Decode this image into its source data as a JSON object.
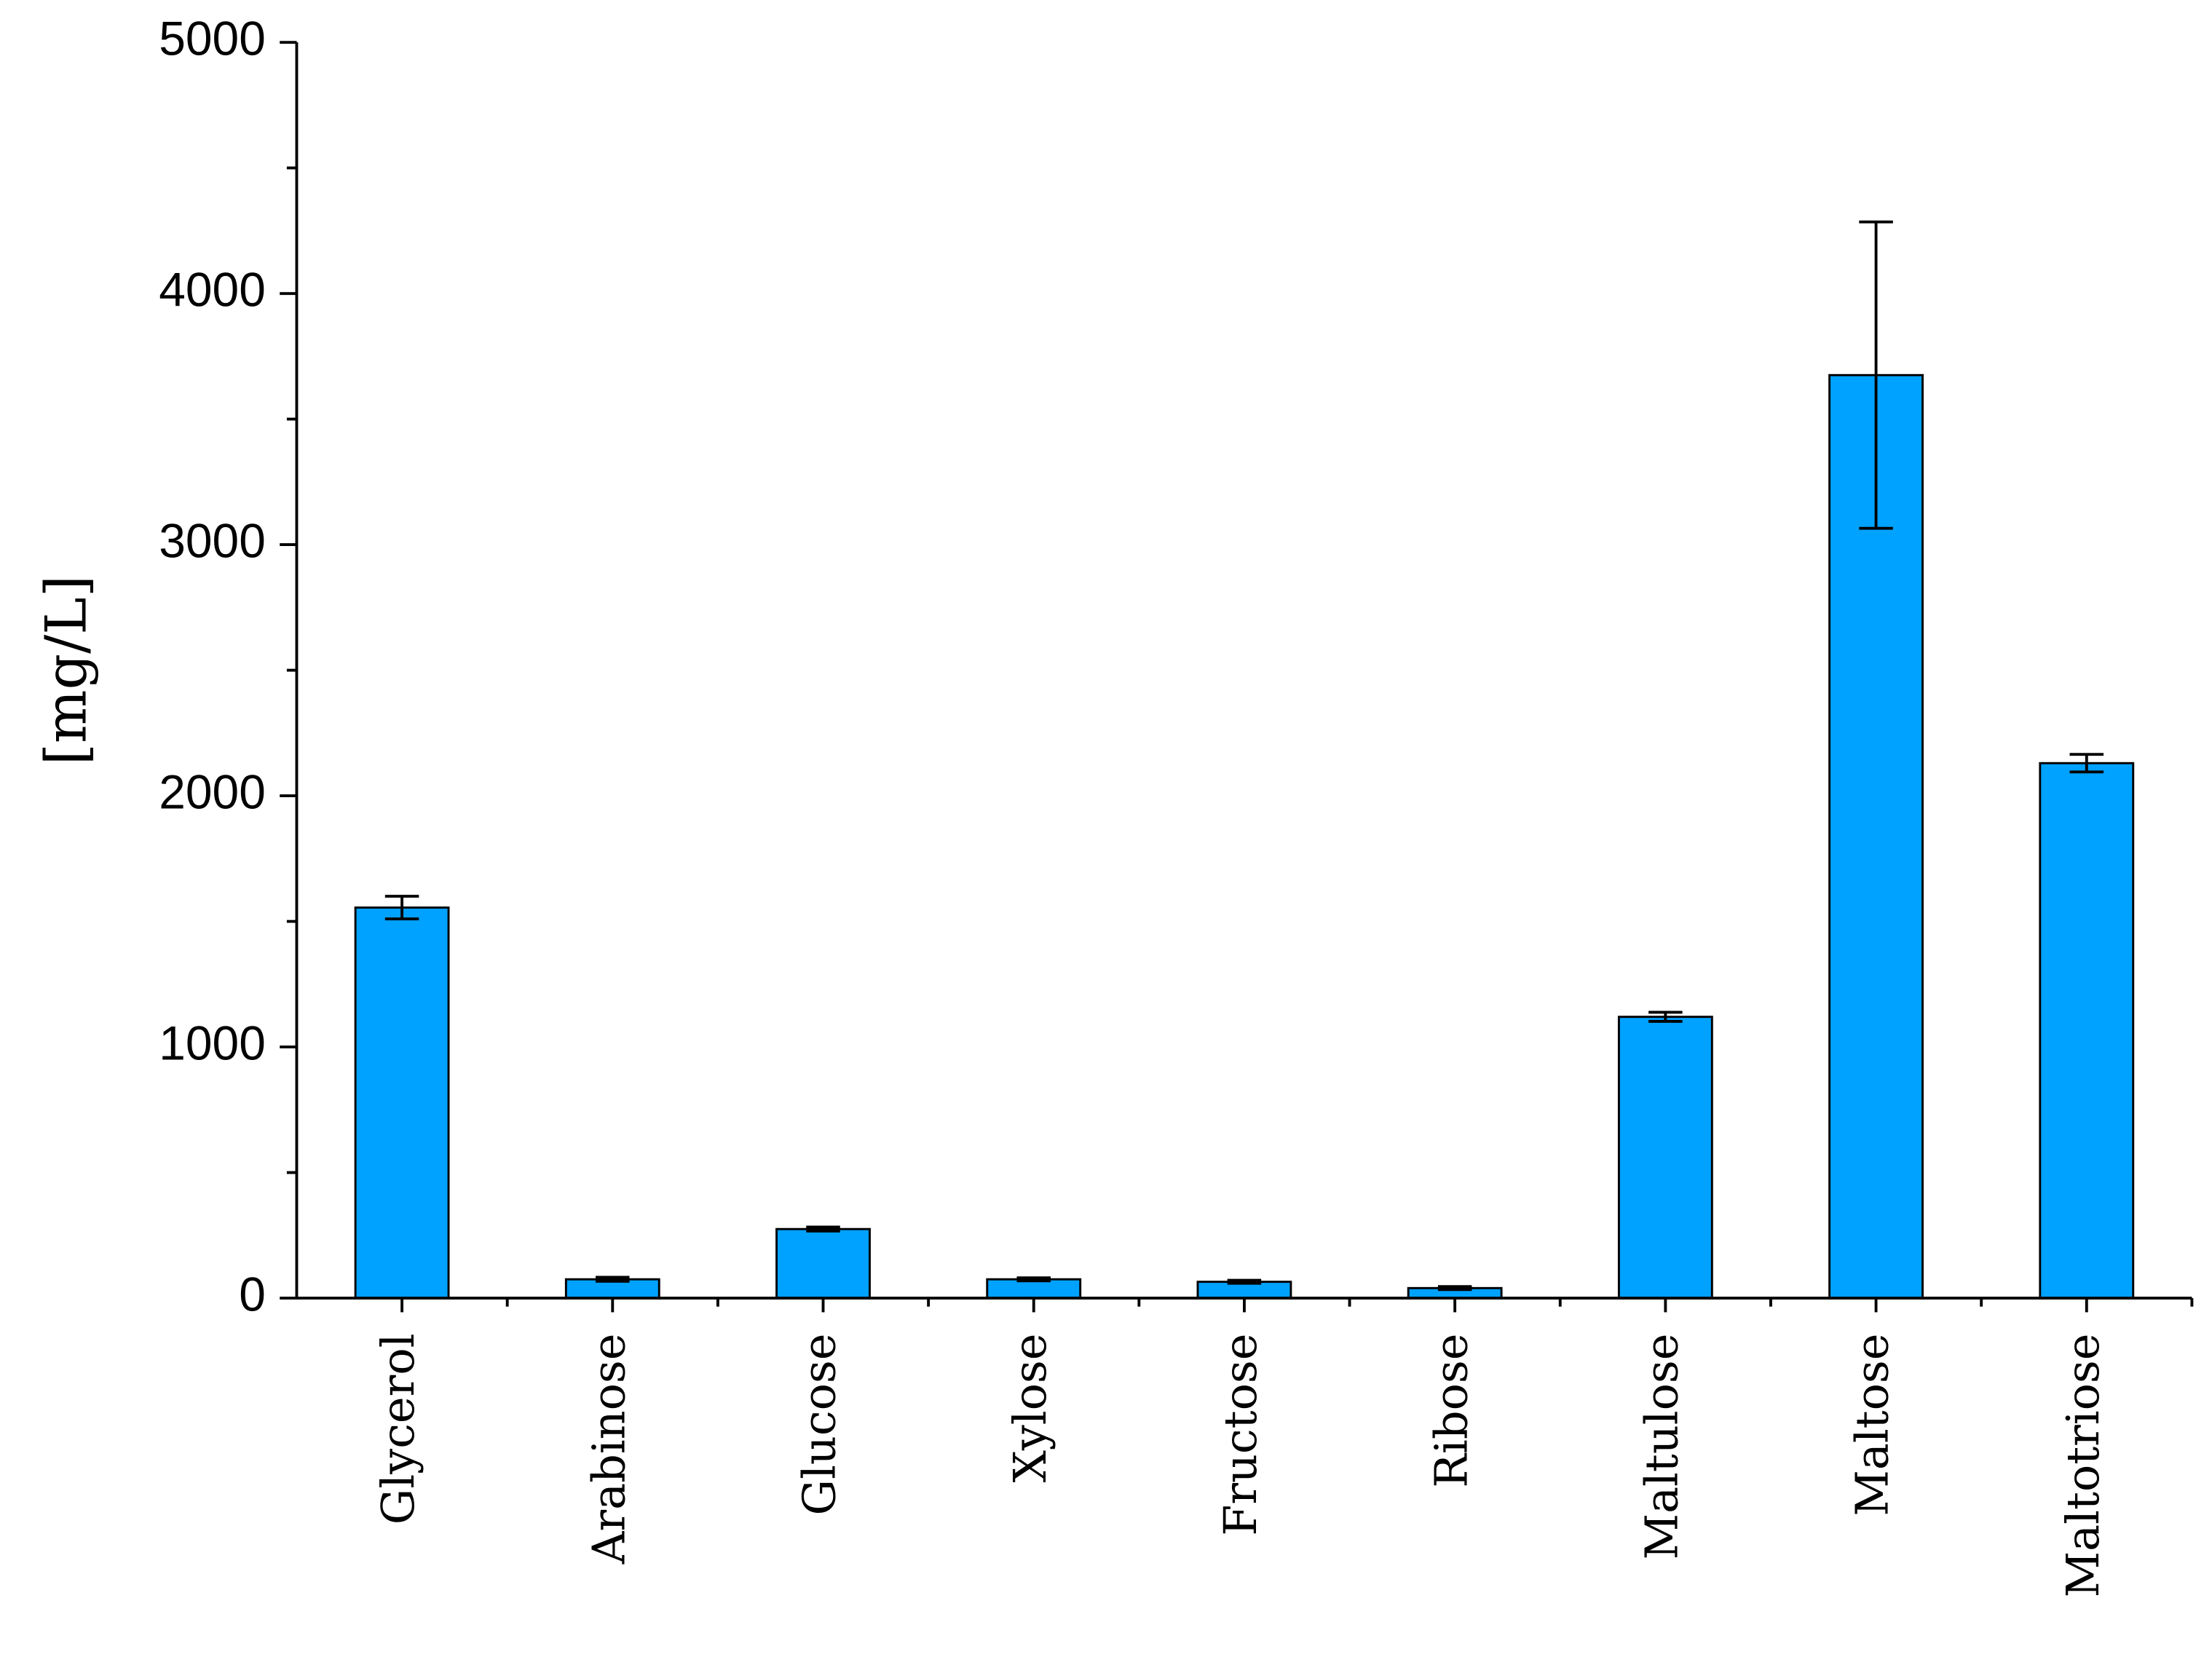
{
  "chart_data": {
    "type": "bar",
    "y_label": "[mg/L]",
    "categories": [
      "Glycerol",
      "Arabinose",
      "Glucose",
      "Xylose",
      "Fructose",
      "Ribose",
      "Maltulose",
      "Maltose",
      "Maltotriose"
    ],
    "values": [
      1555,
      75,
      275,
      75,
      65,
      40,
      1120,
      3675,
      2130
    ],
    "errors": [
      45,
      8,
      8,
      6,
      6,
      6,
      18,
      610,
      35
    ],
    "color": "#00A2FF",
    "ylim": [
      0,
      5000
    ],
    "yticks": [
      0,
      1000,
      2000,
      3000,
      4000,
      5000
    ],
    "yticks_minor": [
      500,
      1500,
      2500,
      3500,
      4500
    ]
  }
}
